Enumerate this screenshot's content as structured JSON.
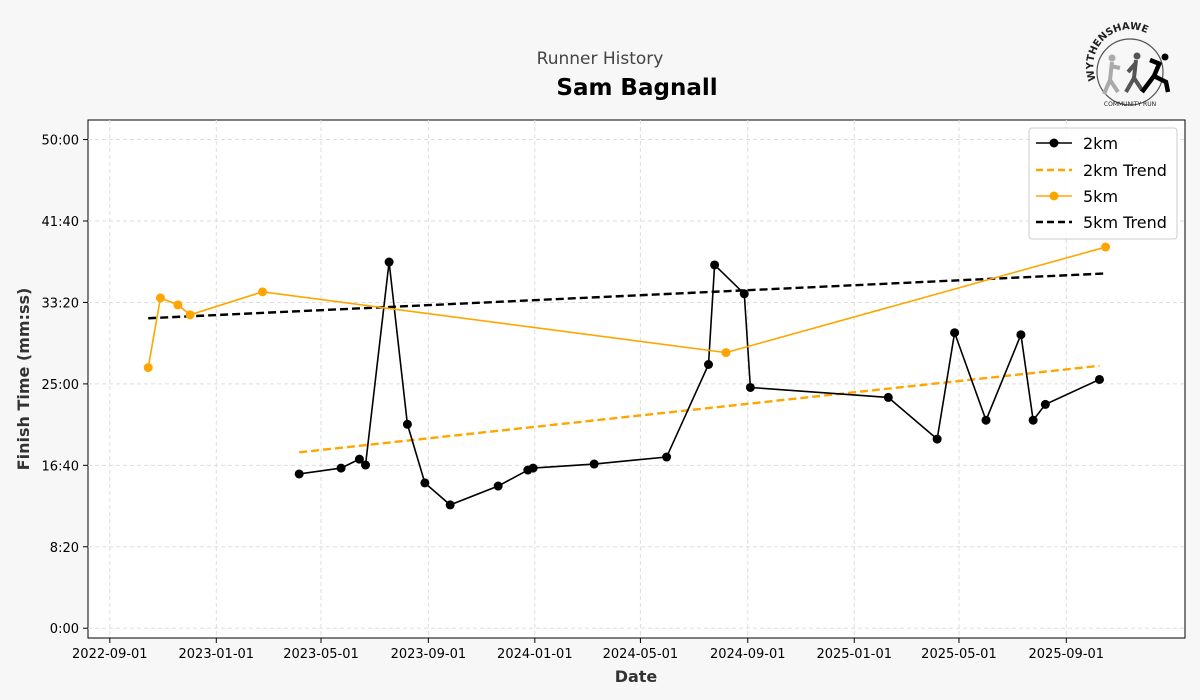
{
  "chart_data": {
    "type": "line",
    "suptitle": "Runner History",
    "title": "Sam Bagnall",
    "xlabel": "Date",
    "ylabel": "Finish Time (mm:ss)",
    "logo_text": "WYTHENSHAWE COMMUNITY RUN",
    "xticks": [
      "2022-09-01",
      "2023-01-01",
      "2023-05-01",
      "2023-09-01",
      "2024-01-01",
      "2024-05-01",
      "2024-09-01",
      "2025-01-01",
      "2025-05-01",
      "2025-09-01"
    ],
    "yticks": [
      "0:00",
      "8:20",
      "16:40",
      "25:00",
      "33:20",
      "41:40",
      "50:00"
    ],
    "ytick_seconds": [
      0,
      500,
      1000,
      1500,
      2000,
      2500,
      3000
    ],
    "xlim": [
      "2022-08-07",
      "2026-01-15"
    ],
    "ylim_seconds": [
      -60,
      3120
    ],
    "grid": true,
    "legend_position": "top-right",
    "legend": [
      "2km",
      "2km Trend",
      "5km",
      "5km Trend"
    ],
    "colors": {
      "2km": "#000000",
      "5km": "#FFA500"
    },
    "series": [
      {
        "name": "2km",
        "points": [
          [
            "2023-04-06",
            "15:47"
          ],
          [
            "2023-05-24",
            "16:23"
          ],
          [
            "2023-06-14",
            "17:18"
          ],
          [
            "2023-06-21",
            "16:42"
          ],
          [
            "2023-07-18",
            "37:28"
          ],
          [
            "2023-08-08",
            "20:52"
          ],
          [
            "2023-08-28",
            "14:52"
          ],
          [
            "2023-09-26",
            "12:37"
          ],
          [
            "2023-11-20",
            "14:33"
          ],
          [
            "2023-12-24",
            "16:11"
          ],
          [
            "2023-12-30",
            "16:23"
          ],
          [
            "2024-03-09",
            "16:48"
          ],
          [
            "2024-05-31",
            "17:31"
          ],
          [
            "2024-07-18",
            "26:59"
          ],
          [
            "2024-07-25",
            "37:10"
          ],
          [
            "2024-08-28",
            "34:13"
          ],
          [
            "2024-09-04",
            "24:38"
          ],
          [
            "2025-02-09",
            "23:37"
          ],
          [
            "2025-04-06",
            "19:21"
          ],
          [
            "2025-04-26",
            "30:14"
          ],
          [
            "2025-06-01",
            "21:17"
          ],
          [
            "2025-07-11",
            "30:02"
          ],
          [
            "2025-07-25",
            "21:17"
          ],
          [
            "2025-08-08",
            "22:54"
          ],
          [
            "2025-10-09",
            "25:27"
          ]
        ]
      },
      {
        "name": "5km",
        "points": [
          [
            "2022-10-15",
            "26:40"
          ],
          [
            "2022-10-29",
            "33:48"
          ],
          [
            "2022-11-18",
            "33:05"
          ],
          [
            "2022-12-02",
            "32:04"
          ],
          [
            "2023-02-23",
            "34:25"
          ],
          [
            "2024-08-07",
            "28:12"
          ],
          [
            "2025-10-16",
            "39:00"
          ]
        ]
      }
    ],
    "trends": [
      {
        "name": "2km Trend",
        "from": [
          "2023-04-06",
          "18:00"
        ],
        "to": [
          "2025-10-09",
          "26:51"
        ]
      },
      {
        "name": "5km Trend",
        "from": [
          "2022-10-15",
          "31:43"
        ],
        "to": [
          "2025-10-16",
          "36:18"
        ]
      }
    ]
  }
}
